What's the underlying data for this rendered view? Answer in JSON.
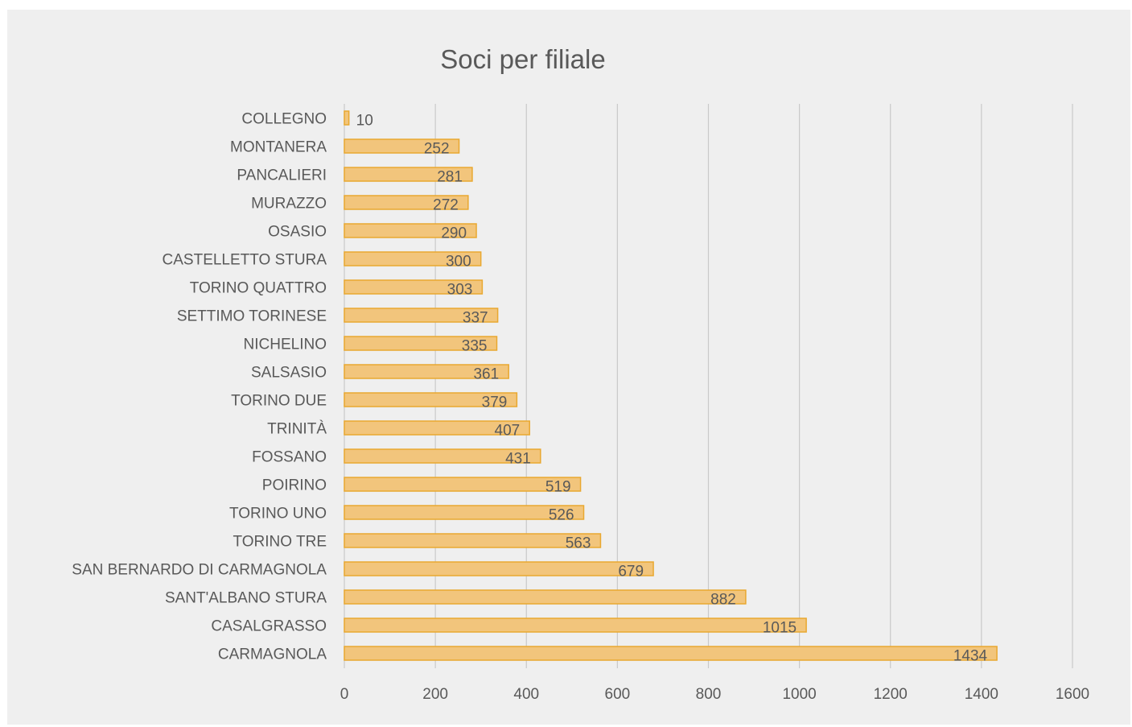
{
  "chart_data": {
    "type": "bar",
    "orientation": "horizontal",
    "title": "Soci per filiale",
    "categories": [
      "COLLEGNO",
      "MONTANERA",
      "PANCALIERI",
      "MURAZZO",
      "OSASIO",
      "CASTELLETTO STURA",
      "TORINO QUATTRO",
      "SETTIMO TORINESE",
      "NICHELINO",
      "SALSASIO",
      "TORINO DUE",
      "TRINITÀ",
      "FOSSANO",
      "POIRINO",
      "TORINO UNO",
      "TORINO TRE",
      "SAN BERNARDO DI CARMAGNOLA",
      "SANT'ALBANO STURA",
      "CASALGRASSO",
      "CARMAGNOLA"
    ],
    "values": [
      10,
      252,
      281,
      272,
      290,
      300,
      303,
      337,
      335,
      361,
      379,
      407,
      431,
      519,
      526,
      563,
      679,
      882,
      1015,
      1434
    ],
    "xlim": [
      0,
      1600
    ],
    "xticks": [
      0,
      200,
      400,
      600,
      800,
      1000,
      1200,
      1400,
      1600
    ],
    "grid": "vertical",
    "data_labels": true,
    "colors": {
      "bar_fill": "#f2c57c",
      "bar_stroke": "#e9a830",
      "grid": "#c9c9c9",
      "text": "#595959",
      "background": "#efefef"
    }
  }
}
